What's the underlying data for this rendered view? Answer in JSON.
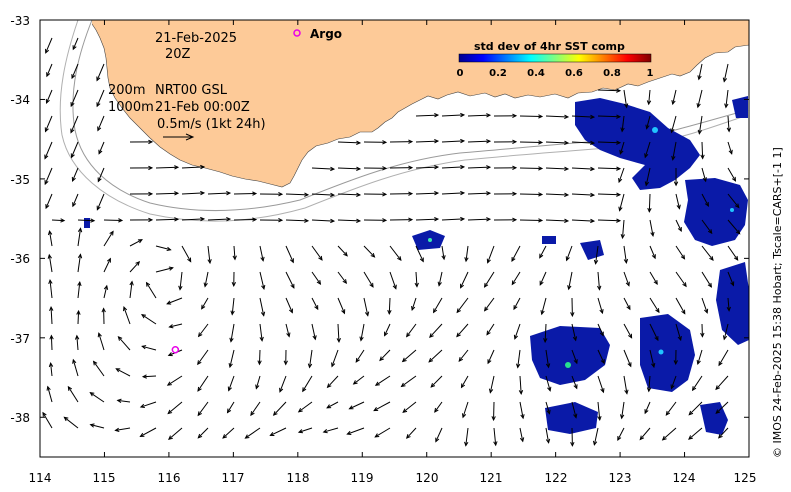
{
  "map": {
    "date": "21-Feb-2025",
    "time": "20Z",
    "depth_line_1": "200m",
    "depth_line_2": "1000m",
    "product": "NRT00 GSL",
    "product_time": "21-Feb 00:00Z",
    "scale_label": "0.5m/s (1kt 24h)",
    "argo_legend": "Argo",
    "credit": "© IMOS 24-Feb-2025 15:38 Hobart; Tscale=CARS+[-1 1]",
    "lon_range": [
      114,
      125
    ],
    "lat_range": [
      -38.5,
      -33
    ],
    "x_ticks": [
      "114",
      "115",
      "116",
      "117",
      "118",
      "119",
      "120",
      "121",
      "122",
      "123",
      "124",
      "125"
    ],
    "y_ticks": [
      "-33",
      "-34",
      "-35",
      "-36",
      "-37",
      "-38"
    ],
    "argo_float": {
      "lon": 116.1,
      "lat": -37.15
    },
    "colors": {
      "land": "#fdca98",
      "argo": "#e800e8",
      "contour": "#9a9a9a",
      "sst_low": "#0a1aa8"
    }
  },
  "colorbar": {
    "title": "std dev of 4hr SST comp",
    "ticks": [
      "0",
      "0.2",
      "0.4",
      "0.6",
      "0.8",
      "1"
    ],
    "colormap": "jet"
  }
}
